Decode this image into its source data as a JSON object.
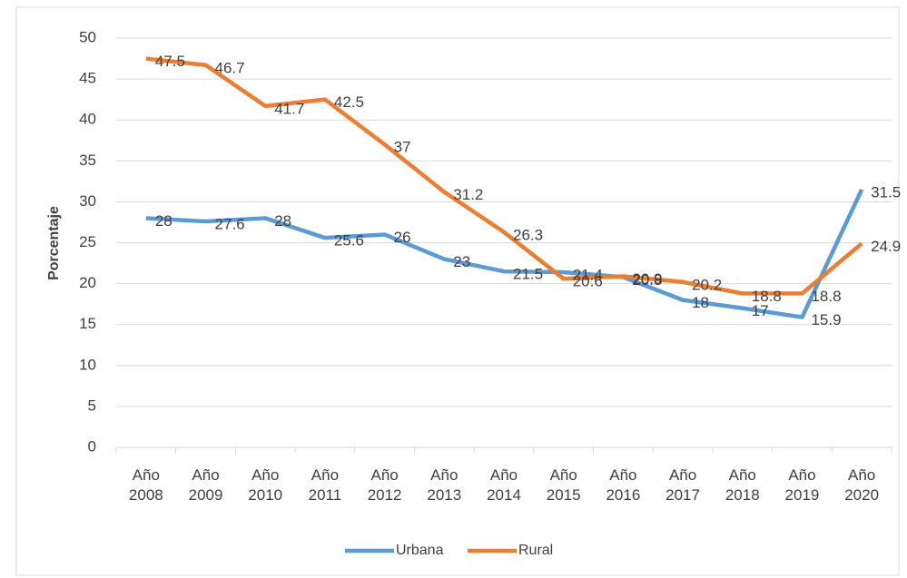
{
  "chart_data": {
    "type": "line",
    "y_label": "Porcentaje",
    "categories": [
      "Año 2008",
      "Año 2009",
      "Año 2010",
      "Año 2011",
      "Año 2012",
      "Año 2013",
      "Año 2014",
      "Año 2015",
      "Año 2016",
      "Año 2017",
      "Año 2018",
      "Año 2019",
      "Año 2020"
    ],
    "series": [
      {
        "name": "Urbana",
        "color": "#5b9bd5",
        "values": [
          28,
          27.6,
          28,
          25.6,
          26,
          23,
          21.5,
          21.4,
          20.8,
          18,
          17,
          15.9,
          31.5
        ]
      },
      {
        "name": "Rural",
        "color": "#ed7d31",
        "values": [
          47.5,
          46.7,
          41.7,
          42.5,
          37,
          31.2,
          26.3,
          20.6,
          20.9,
          20.2,
          18.8,
          18.8,
          24.9
        ]
      }
    ],
    "ylim": [
      0,
      50
    ],
    "yticks": [
      0,
      5,
      10,
      15,
      20,
      25,
      30,
      35,
      40,
      45,
      50
    ],
    "grid": true,
    "legend": "bottom"
  }
}
